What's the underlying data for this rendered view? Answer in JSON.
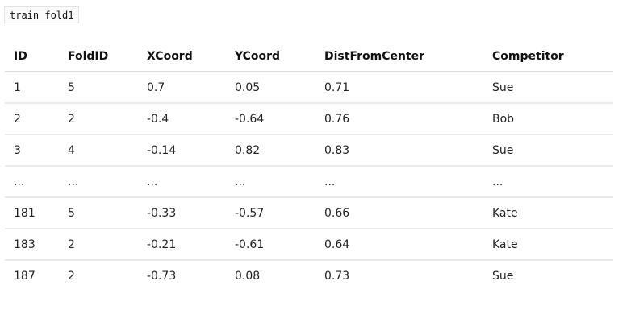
{
  "code_label": "train fold1",
  "table": {
    "columns": [
      "ID",
      "FoldID",
      "XCoord",
      "YCoord",
      "DistFromCenter",
      "Competitor"
    ],
    "rows": [
      [
        "1",
        "5",
        "0.7",
        "0.05",
        "0.71",
        "Sue"
      ],
      [
        "2",
        "2",
        "-0.4",
        "-0.64",
        "0.76",
        "Bob"
      ],
      [
        "3",
        "4",
        "-0.14",
        "0.82",
        "0.83",
        "Sue"
      ],
      [
        "...",
        "...",
        "...",
        "...",
        "...",
        "..."
      ],
      [
        "181",
        "5",
        "-0.33",
        "-0.57",
        "0.66",
        "Kate"
      ],
      [
        "183",
        "2",
        "-0.21",
        "-0.61",
        "0.64",
        "Kate"
      ],
      [
        "187",
        "2",
        "-0.73",
        "0.08",
        "0.73",
        "Sue"
      ]
    ]
  }
}
